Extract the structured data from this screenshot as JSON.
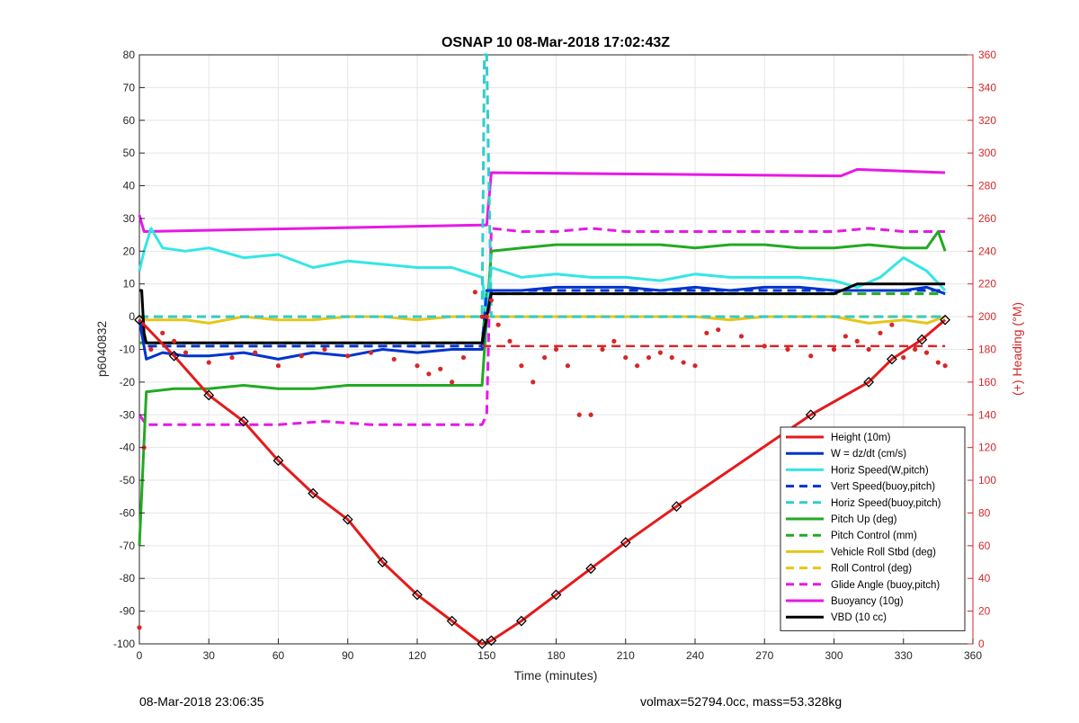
{
  "chart_data": {
    "type": "line",
    "title": "OSNAP 10 08-Mar-2018 17:02:43Z",
    "xlabel": "Time (minutes)",
    "ylabel": "p6040832",
    "y2label": "(+) Heading (°M)",
    "xlim": [
      0,
      360
    ],
    "ylim": [
      -100,
      80
    ],
    "y2lim": [
      0,
      360
    ],
    "xticks": [
      0,
      30,
      60,
      90,
      120,
      150,
      180,
      210,
      240,
      270,
      300,
      330,
      360
    ],
    "yticks": [
      -100,
      -90,
      -80,
      -70,
      -60,
      -50,
      -40,
      -30,
      -20,
      -10,
      0,
      10,
      20,
      30,
      40,
      50,
      60,
      70,
      80
    ],
    "y2ticks": [
      0,
      20,
      40,
      60,
      80,
      100,
      120,
      140,
      160,
      180,
      200,
      220,
      240,
      260,
      280,
      300,
      320,
      340,
      360
    ],
    "grid": true,
    "legend_position": "bottom-right",
    "series": [
      {
        "name": "Height (10m)",
        "color": "#e41a1c",
        "style": "solid",
        "markers": "diamond",
        "x": [
          0,
          15,
          30,
          45,
          60,
          75,
          90,
          105,
          120,
          135,
          148,
          152,
          165,
          180,
          195,
          210,
          232,
          290,
          315,
          325,
          338,
          348
        ],
        "y": [
          -1,
          -12,
          -24,
          -32,
          -44,
          -54,
          -62,
          -75,
          -85,
          -93,
          -100,
          -99,
          -93,
          -85,
          -77,
          -69,
          -58,
          -30,
          -20,
          -13,
          -7,
          -1
        ]
      },
      {
        "name": "W = dz/dt (cm/s)",
        "color": "#0033cc",
        "style": "solid",
        "x": [
          0,
          3,
          10,
          20,
          30,
          45,
          60,
          75,
          90,
          105,
          120,
          135,
          148,
          150,
          152,
          165,
          180,
          195,
          210,
          225,
          240,
          255,
          270,
          285,
          300,
          315,
          330,
          340,
          348
        ],
        "y": [
          -1,
          -13,
          -11,
          -12,
          -12,
          -11,
          -13,
          -11,
          -12,
          -10,
          -11,
          -10,
          -10,
          0,
          8,
          8,
          9,
          9,
          9,
          8,
          9,
          8,
          9,
          9,
          8,
          8,
          8,
          9,
          7
        ]
      },
      {
        "name": "Horiz Speed(W,pitch)",
        "color": "#33e6e6",
        "style": "solid",
        "x": [
          0,
          2,
          5,
          10,
          20,
          30,
          45,
          60,
          75,
          90,
          105,
          120,
          135,
          148,
          150,
          152,
          165,
          180,
          195,
          210,
          225,
          240,
          255,
          270,
          285,
          300,
          310,
          320,
          330,
          340,
          348
        ],
        "y": [
          14,
          20,
          27,
          21,
          20,
          21,
          18,
          19,
          15,
          17,
          16,
          15,
          15,
          12,
          0,
          15,
          12,
          13,
          12,
          12,
          11,
          13,
          12,
          12,
          12,
          11,
          9,
          12,
          18,
          14,
          8
        ]
      },
      {
        "name": "Vert Speed(buoy,pitch)",
        "color": "#0033cc",
        "style": "dashed",
        "x": [
          0,
          3,
          148,
          150,
          348
        ],
        "y": [
          -1,
          -9,
          -9,
          8,
          8
        ]
      },
      {
        "name": "Horiz Speed(buoy,pitch)",
        "color": "#33cccc",
        "style": "dashed",
        "x": [
          0,
          148,
          148.5,
          149,
          150,
          152,
          348
        ],
        "y": [
          0,
          0,
          40,
          80,
          80,
          0,
          0
        ]
      },
      {
        "name": "Pitch Up (deg)",
        "color": "#22aa22",
        "style": "solid",
        "x": [
          0,
          3,
          15,
          30,
          45,
          60,
          75,
          90,
          105,
          120,
          135,
          148,
          150,
          152,
          165,
          180,
          195,
          210,
          225,
          240,
          255,
          270,
          285,
          300,
          315,
          330,
          340,
          345,
          348
        ],
        "y": [
          -70,
          -23,
          -22,
          -22,
          -21,
          -22,
          -22,
          -21,
          -21,
          -21,
          -21,
          -21,
          0,
          20,
          21,
          22,
          22,
          22,
          22,
          21,
          22,
          22,
          21,
          21,
          22,
          21,
          21,
          26,
          20
        ]
      },
      {
        "name": "Pitch Control (mm)",
        "color": "#22aa22",
        "style": "dashed",
        "x": [
          0,
          3,
          148,
          150,
          348
        ],
        "y": [
          -8,
          -8,
          -8,
          7,
          7
        ]
      },
      {
        "name": "Vehicle Roll Stbd (deg)",
        "color": "#e6c619",
        "style": "solid",
        "x": [
          0,
          3,
          10,
          20,
          30,
          45,
          60,
          75,
          90,
          105,
          120,
          135,
          148,
          150,
          155,
          165,
          180,
          195,
          210,
          225,
          240,
          255,
          270,
          285,
          300,
          315,
          330,
          340,
          348
        ],
        "y": [
          0,
          -1,
          -1,
          -1,
          -2,
          0,
          -1,
          -1,
          0,
          0,
          -1,
          0,
          0,
          0,
          0,
          0,
          0,
          0,
          0,
          0,
          0,
          -1,
          0,
          0,
          0,
          -2,
          -1,
          -2,
          0
        ]
      },
      {
        "name": "Roll Control (deg)",
        "color": "#e6c619",
        "style": "dashed",
        "x": [
          0,
          148,
          150,
          348
        ],
        "y": [
          0,
          0,
          0,
          0
        ]
      },
      {
        "name": "Glide Angle (buoy,pitch)",
        "color": "#e619e6",
        "style": "dashed",
        "x": [
          0,
          3,
          20,
          40,
          60,
          80,
          100,
          120,
          148,
          150,
          152,
          165,
          180,
          195,
          210,
          225,
          240,
          255,
          270,
          285,
          300,
          315,
          330,
          340,
          348
        ],
        "y": [
          -30,
          -33,
          -33,
          -33,
          -33,
          -32,
          -33,
          -33,
          -33,
          -30,
          27,
          26,
          26,
          27,
          26,
          26,
          26,
          26,
          26,
          26,
          26,
          27,
          26,
          26,
          26
        ]
      },
      {
        "name": "Buoyancy (10g)",
        "color": "#e619e6",
        "style": "solid",
        "x": [
          0,
          2,
          148,
          150,
          152,
          300,
          303,
          310,
          348
        ],
        "y": [
          31,
          26,
          28,
          28,
          44,
          43,
          43,
          45,
          44
        ]
      },
      {
        "name": "VBD (10 cc)",
        "color": "#000000",
        "style": "solid",
        "x": [
          0,
          1,
          2,
          3,
          148,
          150,
          152,
          300,
          310,
          330,
          348
        ],
        "y": [
          8,
          8,
          -5,
          -8,
          -8,
          0,
          7,
          7,
          10,
          10,
          10
        ]
      }
    ],
    "heading": {
      "name": "(+) Heading (°M)",
      "color": "#d62728",
      "style": "dots",
      "axis": "right",
      "x": [
        0,
        2,
        5,
        10,
        15,
        20,
        30,
        40,
        50,
        60,
        70,
        80,
        90,
        100,
        110,
        120,
        125,
        130,
        135,
        140,
        145,
        148,
        150,
        152,
        155,
        160,
        165,
        170,
        175,
        180,
        185,
        190,
        195,
        200,
        205,
        210,
        215,
        220,
        225,
        230,
        235,
        240,
        245,
        250,
        260,
        270,
        280,
        290,
        300,
        305,
        310,
        315,
        320,
        325,
        330,
        335,
        340,
        345,
        348
      ],
      "y": [
        10,
        120,
        180,
        190,
        185,
        178,
        172,
        175,
        178,
        170,
        176,
        180,
        176,
        178,
        174,
        170,
        165,
        168,
        160,
        175,
        215,
        200,
        200,
        210,
        195,
        185,
        170,
        160,
        175,
        180,
        170,
        140,
        140,
        180,
        185,
        175,
        170,
        175,
        178,
        175,
        172,
        170,
        190,
        192,
        188,
        182,
        180,
        176,
        180,
        188,
        185,
        180,
        190,
        195,
        175,
        180,
        178,
        172,
        170
      ]
    },
    "heading_dashed": {
      "color": "#d62728",
      "style": "dashed",
      "axis": "right",
      "x": [
        148,
        348
      ],
      "y": [
        182,
        182
      ]
    }
  },
  "footer": {
    "left": "08-Mar-2018 23:06:35",
    "right": "volmax=52794.0cc, mass=53.328kg"
  }
}
